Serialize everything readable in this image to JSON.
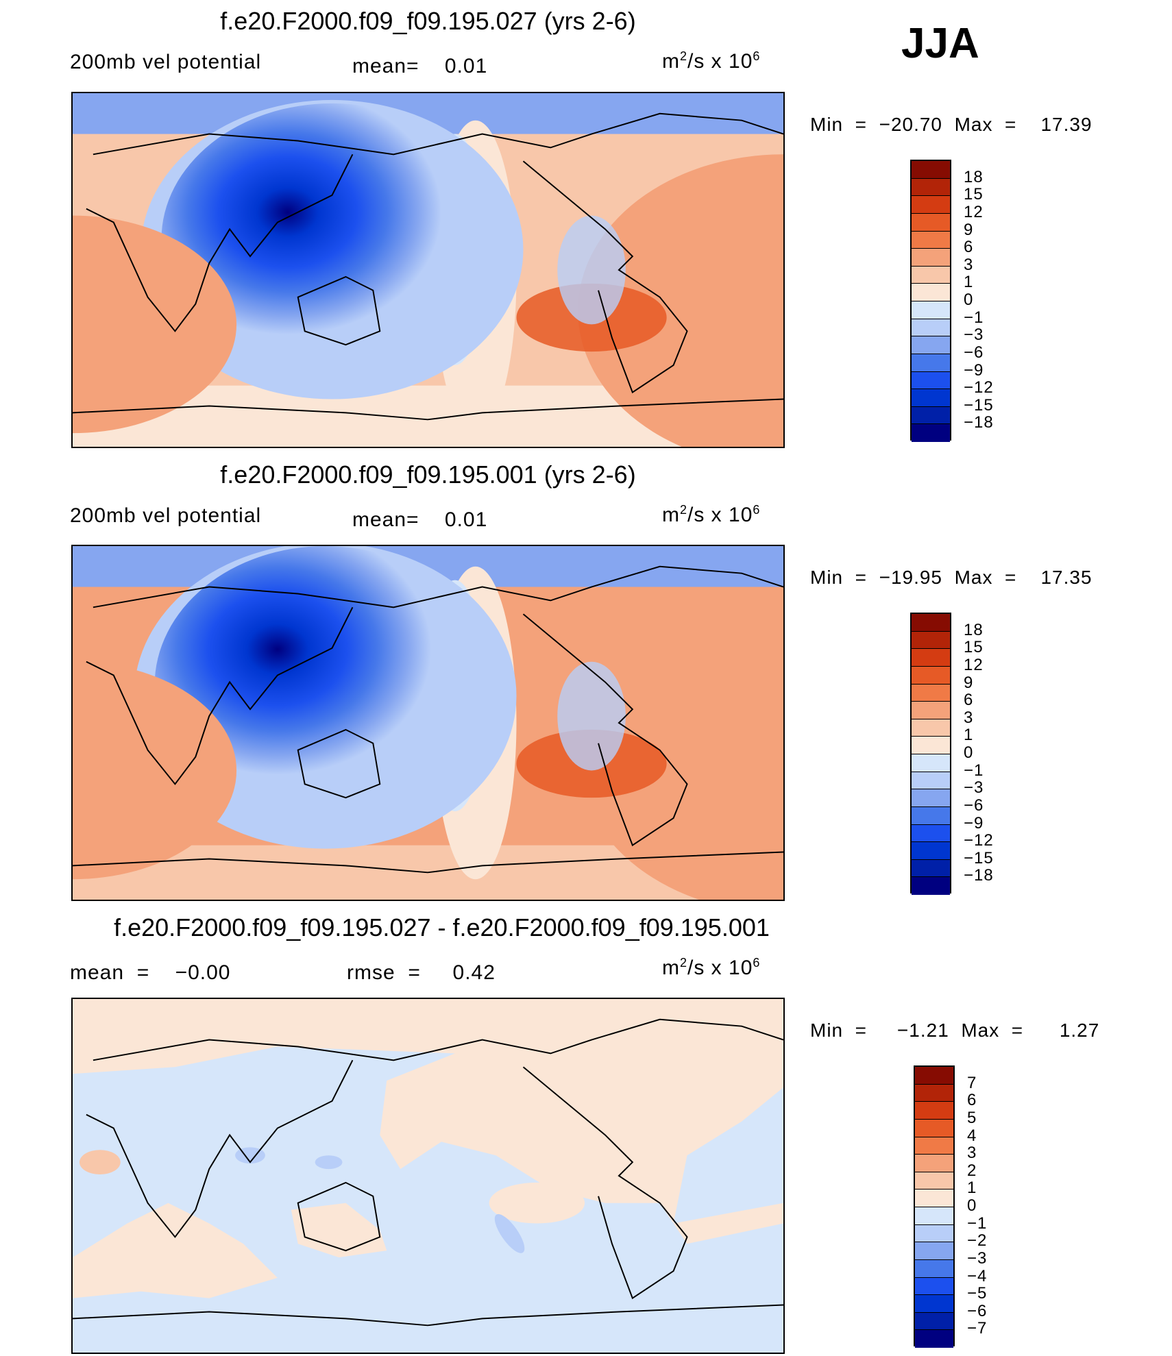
{
  "season": "JJA",
  "colors": {
    "neg": [
      "#000080",
      "#0020a8",
      "#0036d0",
      "#1c50ee",
      "#4678ea",
      "#86a6f0",
      "#b8cef8",
      "#d6e6fa"
    ],
    "pos": [
      "#fbe6d6",
      "#f8c7aa",
      "#f4a27a",
      "#f07a46",
      "#e65a26",
      "#d43c12",
      "#b22408",
      "#860c02"
    ]
  },
  "panels": [
    {
      "title": "f.e20.F2000.f09_f09.195.027 (yrs 2-6)",
      "left": "200mb vel potential",
      "middle": "mean=    0.01",
      "units": "m²/s x 10⁶",
      "min": "-20.70",
      "max": "17.39",
      "minmax_text": "Min  =  −20.70  Max  =    17.39",
      "levels": [
        "18",
        "15",
        "12",
        "9",
        "6",
        "3",
        "1",
        "0",
        "−1",
        "−3",
        "−6",
        "−9",
        "−12",
        "−15",
        "−18"
      ]
    },
    {
      "title": "f.e20.F2000.f09_f09.195.001 (yrs 2-6)",
      "left": "200mb vel potential",
      "middle": "mean=    0.01",
      "units": "m²/s x 10⁶",
      "min": "-19.95",
      "max": "17.35",
      "minmax_text": "Min  =  −19.95  Max  =    17.35",
      "levels": [
        "18",
        "15",
        "12",
        "9",
        "6",
        "3",
        "1",
        "0",
        "−1",
        "−3",
        "−6",
        "−9",
        "−12",
        "−15",
        "−18"
      ]
    },
    {
      "title": "f.e20.F2000.f09_f09.195.027 - f.e20.F2000.f09_f09.195.001",
      "left": "mean  =    −0.00",
      "middle": "rmse  =     0.42",
      "units": "m²/s x 10⁶",
      "min": "-1.21",
      "max": "1.27",
      "minmax_text": "Min  =     −1.21  Max  =      1.27",
      "levels": [
        "7",
        "6",
        "5",
        "4",
        "3",
        "2",
        "1",
        "0",
        "−1",
        "−2",
        "−3",
        "−4",
        "−5",
        "−6",
        "−7"
      ]
    }
  ]
}
